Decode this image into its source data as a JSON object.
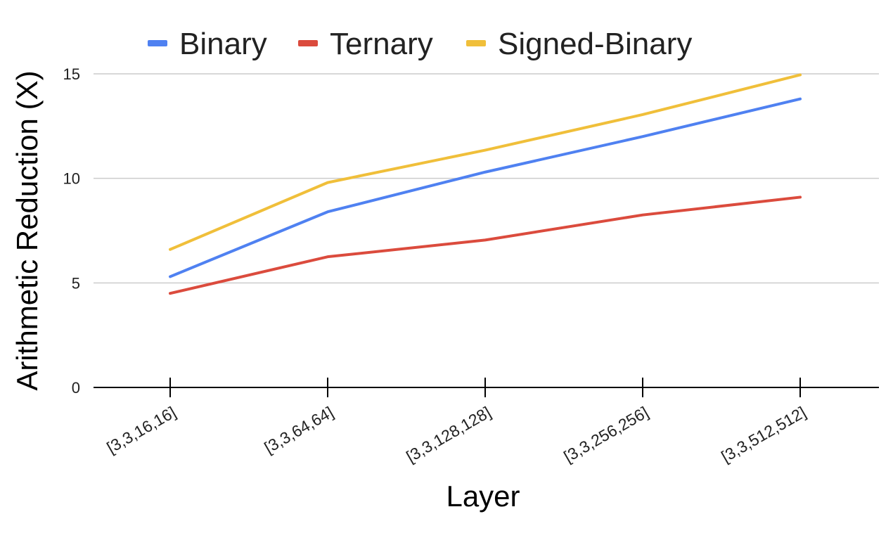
{
  "chart_data": {
    "type": "line",
    "title": "",
    "xlabel": "Layer",
    "ylabel": "Arithmetic Reduction (X)",
    "categories": [
      "[3,3,16,16]",
      "[3,3,64,64]",
      "[3,3,128,128]",
      "[3,3,256,256]",
      "[3,3,512,512]"
    ],
    "ylim": [
      0,
      15
    ],
    "yticks": [
      0,
      5,
      10,
      15
    ],
    "grid": true,
    "legend_position": "top",
    "series": [
      {
        "name": "Binary",
        "color": "#4F81F1",
        "values": [
          5.3,
          8.4,
          10.3,
          12.0,
          13.8
        ]
      },
      {
        "name": "Ternary",
        "color": "#DB4B3D",
        "values": [
          4.5,
          6.25,
          7.05,
          8.25,
          9.1
        ]
      },
      {
        "name": "Signed-Binary",
        "color": "#F0BF3A",
        "values": [
          6.6,
          9.8,
          11.35,
          13.05,
          14.95
        ]
      }
    ]
  }
}
